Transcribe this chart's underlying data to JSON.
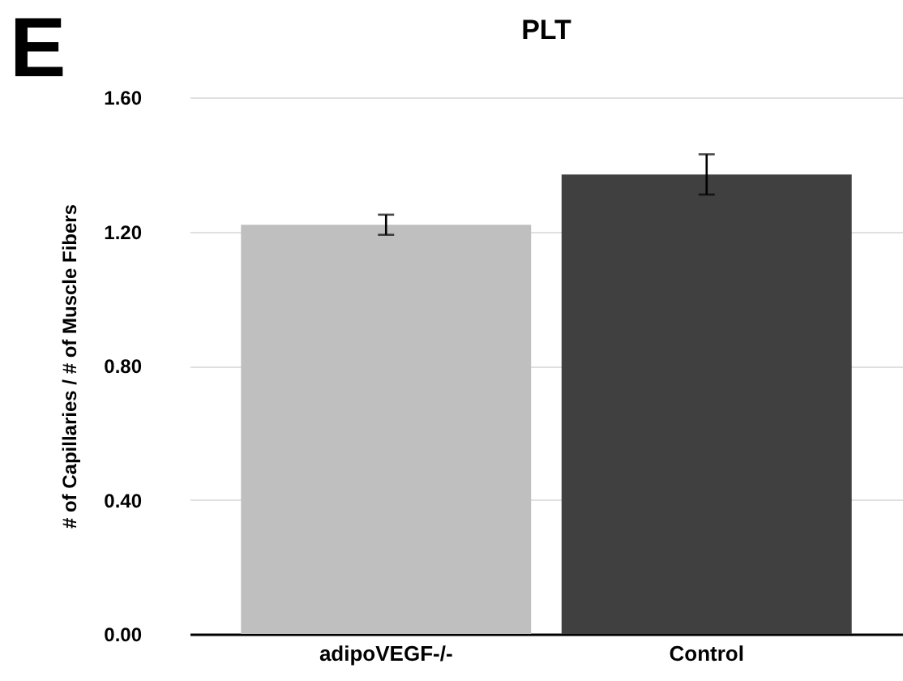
{
  "chart_data": {
    "type": "bar",
    "title": "PLT",
    "ylabel": "# of Capillaries / # of Muscle Fibers",
    "annotations": [
      "E"
    ],
    "categories": [
      "adipoVEGF-/-",
      "Control"
    ],
    "values": [
      1.22,
      1.37
    ],
    "colors": [
      "#bfbfbf",
      "#404040"
    ],
    "errors": [
      0.03,
      0.06
    ],
    "ylim": [
      0,
      1.6
    ],
    "yticks": [
      {
        "value": 0,
        "label": "0.00"
      },
      {
        "value": 0.4,
        "label": "0.40"
      },
      {
        "value": 0.8,
        "label": "0.80"
      },
      {
        "value": 1.2,
        "label": "1.20"
      },
      {
        "value": 1.6,
        "label": "1.60"
      }
    ],
    "grid": "y"
  }
}
